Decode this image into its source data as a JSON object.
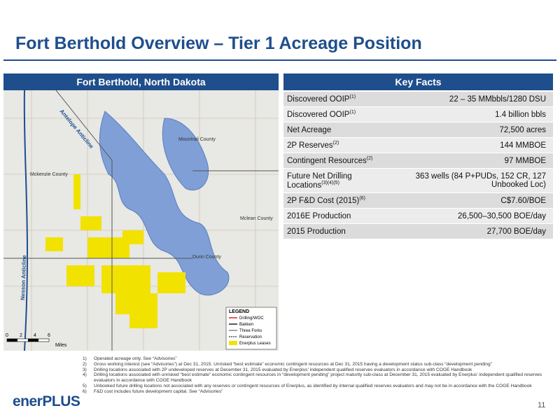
{
  "header": {
    "title": "Fort Berthold Overview – Tier 1 Acreage Position"
  },
  "map": {
    "title": "Fort Berthold, North Dakota",
    "labels": {
      "antelope": "Antelope Anticline",
      "nesson": "Nesson Anticline",
      "mountrail": "Mountrail County",
      "mckenzie": "Mckenzie County",
      "mclean": "Mclean County",
      "dunn": "Dunn County"
    },
    "legend": {
      "title": "LEGEND",
      "items": [
        "Drilling/WOC",
        "Bakken",
        "Three Forks",
        "Reservation",
        "Enerplus Leases"
      ]
    },
    "scale": {
      "ticks": [
        "0",
        "2",
        "4",
        "6"
      ],
      "unit": "Miles"
    }
  },
  "facts": {
    "title": "Key Facts",
    "rows": [
      {
        "label": "Discovered OOIP",
        "note": "(1)",
        "value": "22 – 35 MMbbls/1280 DSU"
      },
      {
        "label": "Discovered OOIP",
        "note": "(1)",
        "value": "1.4 billion bbls"
      },
      {
        "label": "Net Acreage",
        "note": "",
        "value": "72,500 acres"
      },
      {
        "label": "2P Reserves",
        "note": "(2)",
        "value": "144 MMBOE"
      },
      {
        "label": "Contingent Resources",
        "note": "(2)",
        "value": "97 MMBOE"
      },
      {
        "label": "Future Net Drilling Locations",
        "note": "(3)(4)(5)",
        "value": "363 wells (84 P+PUDs, 152 CR, 127 Unbooked Loc)"
      },
      {
        "label": "2P F&D Cost (2015)",
        "note": "(6)",
        "value": "C$7.60/BOE"
      },
      {
        "label": "2016E Production",
        "note": "",
        "value": "26,500–30,500 BOE/day"
      },
      {
        "label": "2015 Production",
        "note": "",
        "value": "27,700 BOE/day"
      }
    ]
  },
  "footnotes": [
    {
      "num": "1)",
      "text": "Operated acreage only. See “Advisories”"
    },
    {
      "num": "2)",
      "text": "Gross working interest (see “Advisories”) at Dec 31, 2015. Unrisked “best estimate” economic contingent resources at Dec 31, 2015 having a development status sub-class “development pending”"
    },
    {
      "num": "3)",
      "text": "Drilling locations associated with 2P undeveloped reserves at December 31, 2015 evaluated by Enerplus' independent qualified reserves evaluators in accordance with COGE Handbook"
    },
    {
      "num": "4)",
      "text": "Drilling locations associated with unrisked “best estimate” economic contingent resources in “development pending” project maturity sub-class at December 31, 2015 evaluated by Enerplus' independent qualified reserves evaluators in accordance with COGE Handbook"
    },
    {
      "num": "5)",
      "text": "Unbooked future drilling locations not associated with any reserves or contingent resources of Enerplus, as identified by internal qualified reserves evaluators and may not be in accordance with the COGE Handbook"
    },
    {
      "num": "6)",
      "text": "F&D cost includes future development capital. See “Advisories”"
    }
  ],
  "footer": {
    "logo": "enerPLUS",
    "page": "11"
  }
}
